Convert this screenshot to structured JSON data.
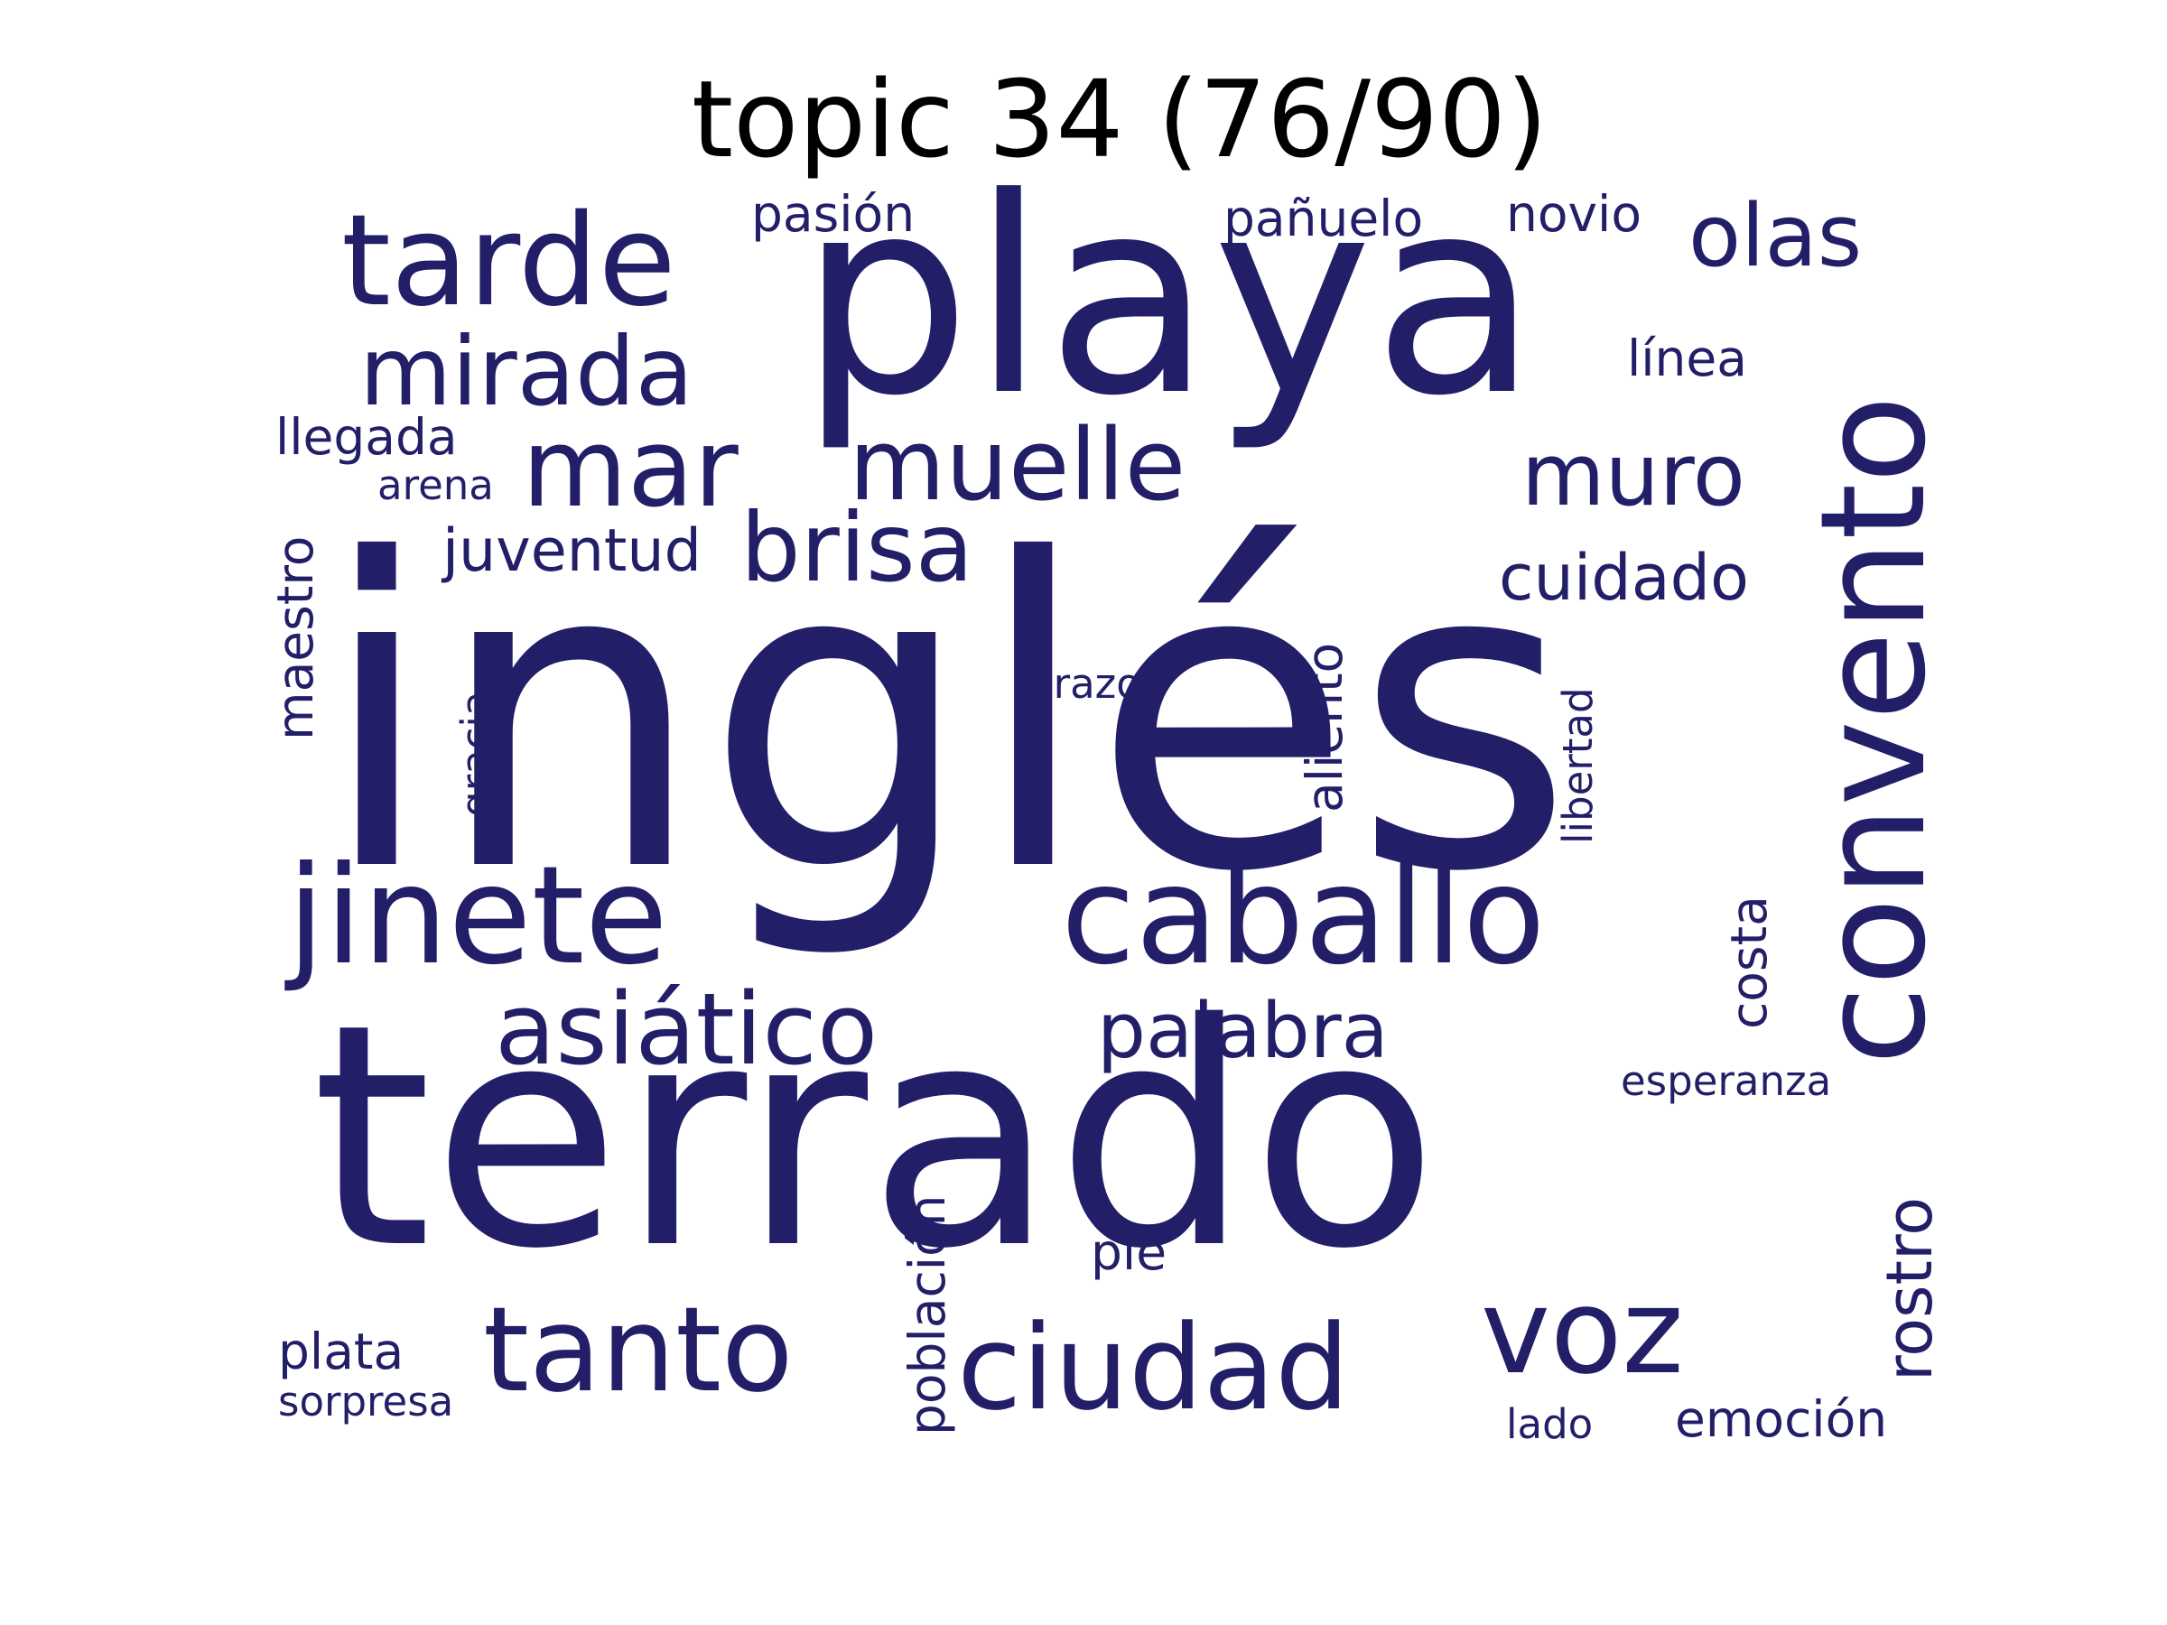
{
  "title": "topic 34 (76/90)",
  "word_color": "#221e68",
  "words": {
    "ingles": "inglés",
    "terrado": "terrado",
    "playa": "playa",
    "convento": "convento",
    "caballo": "caballo",
    "jinete": "jinete",
    "tarde": "tarde",
    "tanto": "tanto",
    "ciudad": "ciudad",
    "voz": "voz",
    "asiatico": "asiático",
    "mar": "mar",
    "muelle": "muelle",
    "mirada": "mirada",
    "brisa": "brisa",
    "olas": "olas",
    "muro": "muro",
    "palabra": "palabra",
    "rostro": "rostro",
    "aliento": "aliento",
    "cuidado": "cuidado",
    "juventud": "juventud",
    "pasion": "pasión",
    "panuelo": "pañuelo",
    "novio": "novio",
    "linea": "línea",
    "llegada": "llegada",
    "arena": "arena",
    "maestro": "maestro",
    "gracia": "gracia",
    "brazo": "brazo",
    "libertad": "libertad",
    "costa": "costa",
    "esperanza": "esperanza",
    "poblacion": "población",
    "pie": "pie",
    "plata": "plata",
    "sorpresa": "sorpresa",
    "lado": "lado",
    "emocion": "emoción"
  }
}
